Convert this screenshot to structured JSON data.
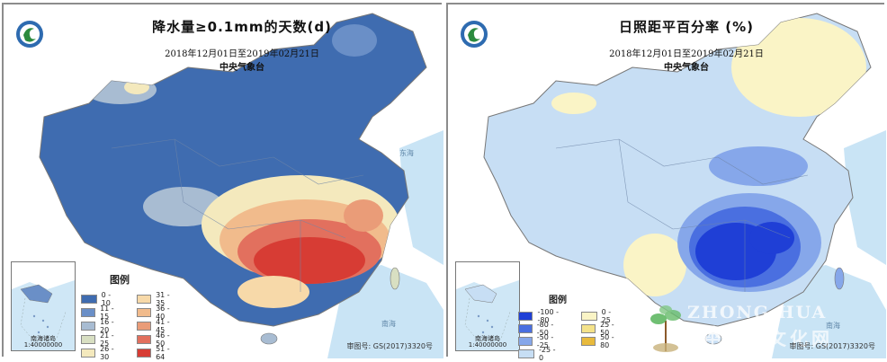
{
  "left_panel": {
    "title": "降水量≥0.1mm的天数(d)",
    "date_range": "2018年12月01日至2019年02月21日",
    "org": "中央气象台",
    "legend_title": "图例",
    "legend_items": [
      {
        "label": "0 - 10",
        "color": "#3f6cb0"
      },
      {
        "label": "11 - 15",
        "color": "#6a8fc7"
      },
      {
        "label": "16 - 20",
        "color": "#a8bcd2"
      },
      {
        "label": "21 - 25",
        "color": "#d8dfc2"
      },
      {
        "label": "26 - 30",
        "color": "#f4e9bd"
      },
      {
        "label": "31 - 35",
        "color": "#f7d9a9"
      },
      {
        "label": "36 - 40",
        "color": "#f1bb8c"
      },
      {
        "label": "41 - 45",
        "color": "#ea9c78"
      },
      {
        "label": "46 - 50",
        "color": "#e2705e"
      },
      {
        "label": "51 - 64",
        "color": "#d73c34"
      }
    ],
    "inset_label": "南海诸岛",
    "inset_scale": "1:40000000",
    "review_number": "审图号: GS(2017)3320号",
    "sea_labels": [
      "东海",
      "南海"
    ]
  },
  "right_panel": {
    "title": "日照距平百分率 (%)",
    "date_range": "2018年12月01日至2019年02月21日",
    "org": "中央气象台",
    "legend_title": "图例",
    "legend_items": [
      {
        "label": "-100 - -80",
        "color": "#1f3fd6"
      },
      {
        "label": "-80 - -50",
        "color": "#4a6fe0"
      },
      {
        "label": "-50 - -25",
        "color": "#86a7ea"
      },
      {
        "label": "-25 - 0",
        "color": "#c7def4"
      },
      {
        "label": "0 - 25",
        "color": "#faf4c6"
      },
      {
        "label": "25 - 50",
        "color": "#f4e28a"
      },
      {
        "label": "50 - 80",
        "color": "#e8ba3c"
      }
    ],
    "inset_label": "南海诸岛",
    "inset_scale": "1:40000000",
    "review_number": "审图号: GS(2017)3320号",
    "sea_labels": [
      "南海"
    ],
    "watermark_en": "ZHONG HUA WANG",
    "watermark_cn": "中华茶文化网"
  }
}
